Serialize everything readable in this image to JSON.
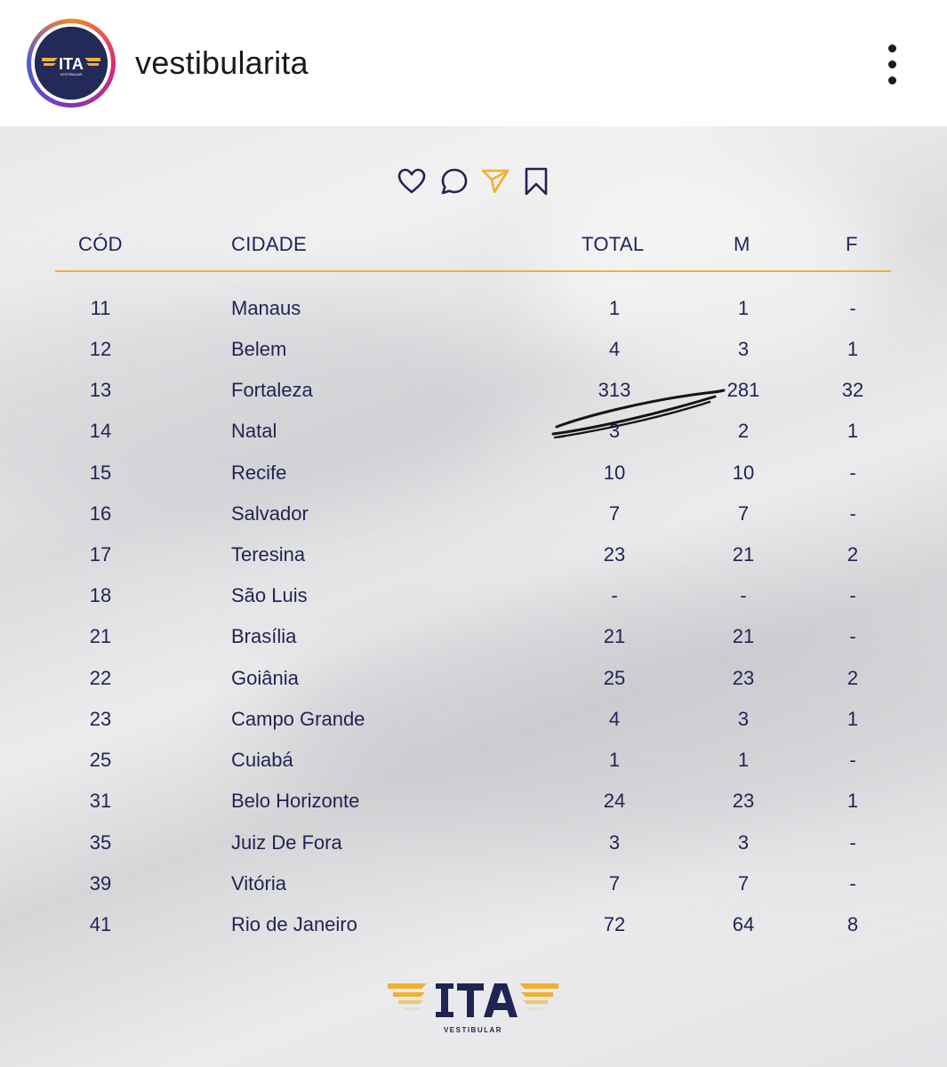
{
  "header": {
    "username": "vestibularita",
    "avatar_icon": "ita-vestibular-logo",
    "more_icon": "more-vertical-icon"
  },
  "colors": {
    "navy": "#1f2452",
    "gold": "#f0b030",
    "avatar_bg": "#232a57"
  },
  "actions": [
    {
      "icon": "heart-icon"
    },
    {
      "icon": "comment-icon"
    },
    {
      "icon": "send-icon"
    },
    {
      "icon": "bookmark-icon"
    }
  ],
  "table": {
    "headers": {
      "cod": "CÓD",
      "cidade": "CIDADE",
      "total": "TOTAL",
      "m": "M",
      "f": "F"
    },
    "rows": [
      {
        "cod": "11",
        "cidade": "Manaus",
        "total": "1",
        "m": "1",
        "f": "-"
      },
      {
        "cod": "12",
        "cidade": "Belem",
        "total": "4",
        "m": "3",
        "f": "1"
      },
      {
        "cod": "13",
        "cidade": "Fortaleza",
        "total": "313",
        "m": "281",
        "f": "32"
      },
      {
        "cod": "14",
        "cidade": "Natal",
        "total": "3",
        "m": "2",
        "f": "1"
      },
      {
        "cod": "15",
        "cidade": "Recife",
        "total": "10",
        "m": "10",
        "f": "-"
      },
      {
        "cod": "16",
        "cidade": "Salvador",
        "total": "7",
        "m": "7",
        "f": "-"
      },
      {
        "cod": "17",
        "cidade": "Teresina",
        "total": "23",
        "m": "21",
        "f": "2"
      },
      {
        "cod": "18",
        "cidade": "São Luis",
        "total": "-",
        "m": "-",
        "f": "-"
      },
      {
        "cod": "21",
        "cidade": "Brasília",
        "total": "21",
        "m": "21",
        "f": "-"
      },
      {
        "cod": "22",
        "cidade": "Goiânia",
        "total": "25",
        "m": "23",
        "f": "2"
      },
      {
        "cod": "23",
        "cidade": "Campo Grande",
        "total": "4",
        "m": "3",
        "f": "1"
      },
      {
        "cod": "25",
        "cidade": "Cuiabá",
        "total": "1",
        "m": "1",
        "f": "-"
      },
      {
        "cod": "31",
        "cidade": "Belo Horizonte",
        "total": "24",
        "m": "23",
        "f": "1"
      },
      {
        "cod": "35",
        "cidade": "Juiz De Fora",
        "total": "3",
        "m": "3",
        "f": "-"
      },
      {
        "cod": "39",
        "cidade": "Vitória",
        "total": "7",
        "m": "7",
        "f": "-"
      },
      {
        "cod": "41",
        "cidade": "Rio de Janeiro",
        "total": "72",
        "m": "64",
        "f": "8"
      }
    ]
  },
  "logo": {
    "wordmark": "ITA",
    "subtitle": "VESTIBULAR"
  }
}
